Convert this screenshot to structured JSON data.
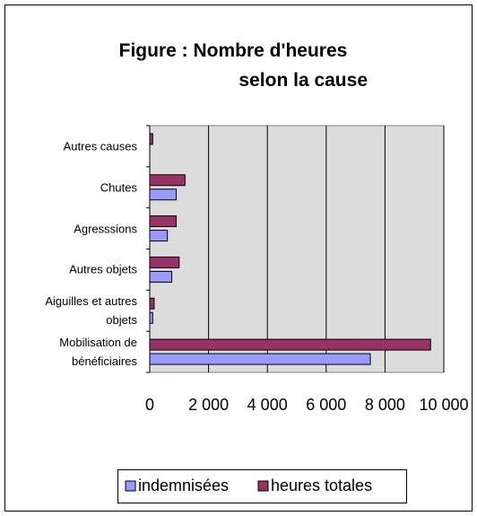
{
  "chart_data": {
    "type": "bar",
    "orientation": "horizontal",
    "title": "Figure : Nombre d'heures selon la cause",
    "categories": [
      "Autres causes",
      "Chutes",
      "Agresssions",
      "Autres objets",
      "Aiguilles et autres objets",
      "Mobilisation de bénéficiaires"
    ],
    "series": [
      {
        "name": "indemnisées",
        "color": "#9999ff",
        "values": [
          0,
          900,
          600,
          750,
          100,
          7500
        ]
      },
      {
        "name": "heures totales",
        "color": "#993366",
        "values": [
          100,
          1200,
          900,
          1000,
          150,
          9550
        ]
      }
    ],
    "xlim": [
      0,
      10000
    ],
    "xticks": [
      0,
      {
        "value": 2000,
        "label": "2 000"
      },
      {
        "value": 4000,
        "label": "4 000"
      },
      {
        "value": 6000,
        "label": "6 000"
      },
      {
        "value": 8000,
        "label": "8 000"
      },
      {
        "value": 10000,
        "label": "10 000"
      }
    ],
    "grid": true,
    "legend": "bottom"
  }
}
